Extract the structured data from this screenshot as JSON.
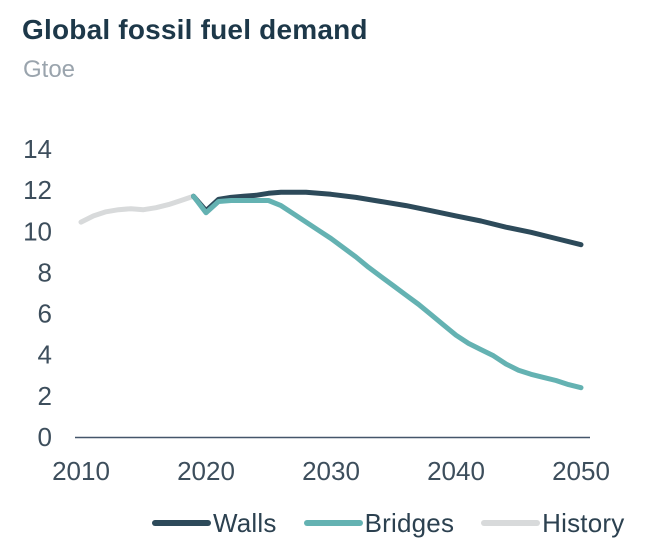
{
  "header": {
    "title": "Global fossil fuel demand",
    "unit": "Gtoe"
  },
  "colors": {
    "background": "#ffffff",
    "title_text": "#1d3849",
    "unit_text": "#9aa4ad",
    "axis_text": "#3d4e5c",
    "axis_line": "#44566a",
    "walls": "#2d4a5a",
    "bridges": "#64b2b2",
    "history": "#d8dadb"
  },
  "chart_data": {
    "type": "line",
    "title": "Global fossil fuel demand",
    "ylabel": "Gtoe",
    "xlabel": "",
    "xlim": [
      2010,
      2050
    ],
    "ylim": [
      0,
      14
    ],
    "xticks": [
      2010,
      2020,
      2030,
      2040,
      2050
    ],
    "yticks": [
      0,
      2,
      4,
      6,
      8,
      10,
      12,
      14
    ],
    "grid": false,
    "legend_position": "bottom",
    "series": [
      {
        "name": "Walls",
        "color": "#2d4a5a",
        "points": [
          [
            2019,
            11.65
          ],
          [
            2020,
            10.95
          ],
          [
            2021,
            11.5
          ],
          [
            2022,
            11.6
          ],
          [
            2023,
            11.65
          ],
          [
            2024,
            11.7
          ],
          [
            2025,
            11.8
          ],
          [
            2026,
            11.85
          ],
          [
            2027,
            11.85
          ],
          [
            2028,
            11.85
          ],
          [
            2029,
            11.8
          ],
          [
            2030,
            11.75
          ],
          [
            2032,
            11.6
          ],
          [
            2034,
            11.4
          ],
          [
            2036,
            11.2
          ],
          [
            2038,
            10.95
          ],
          [
            2040,
            10.7
          ],
          [
            2042,
            10.45
          ],
          [
            2044,
            10.15
          ],
          [
            2046,
            9.9
          ],
          [
            2048,
            9.6
          ],
          [
            2050,
            9.3
          ]
        ]
      },
      {
        "name": "Bridges",
        "color": "#64b2b2",
        "points": [
          [
            2019,
            11.65
          ],
          [
            2020,
            10.85
          ],
          [
            2021,
            11.4
          ],
          [
            2022,
            11.45
          ],
          [
            2023,
            11.45
          ],
          [
            2024,
            11.45
          ],
          [
            2025,
            11.45
          ],
          [
            2026,
            11.2
          ],
          [
            2027,
            10.8
          ],
          [
            2028,
            10.4
          ],
          [
            2029,
            10.0
          ],
          [
            2030,
            9.6
          ],
          [
            2031,
            9.15
          ],
          [
            2032,
            8.7
          ],
          [
            2033,
            8.2
          ],
          [
            2034,
            7.75
          ],
          [
            2035,
            7.3
          ],
          [
            2036,
            6.85
          ],
          [
            2037,
            6.4
          ],
          [
            2038,
            5.9
          ],
          [
            2039,
            5.4
          ],
          [
            2040,
            4.9
          ],
          [
            2041,
            4.5
          ],
          [
            2042,
            4.2
          ],
          [
            2043,
            3.9
          ],
          [
            2044,
            3.5
          ],
          [
            2045,
            3.2
          ],
          [
            2046,
            3.0
          ],
          [
            2047,
            2.85
          ],
          [
            2048,
            2.7
          ],
          [
            2049,
            2.5
          ],
          [
            2050,
            2.35
          ]
        ]
      },
      {
        "name": "History",
        "color": "#d8dadb",
        "points": [
          [
            2010,
            10.4
          ],
          [
            2011,
            10.7
          ],
          [
            2012,
            10.9
          ],
          [
            2013,
            11.0
          ],
          [
            2014,
            11.05
          ],
          [
            2015,
            11.0
          ],
          [
            2016,
            11.1
          ],
          [
            2017,
            11.25
          ],
          [
            2018,
            11.45
          ],
          [
            2019,
            11.65
          ]
        ]
      }
    ]
  }
}
